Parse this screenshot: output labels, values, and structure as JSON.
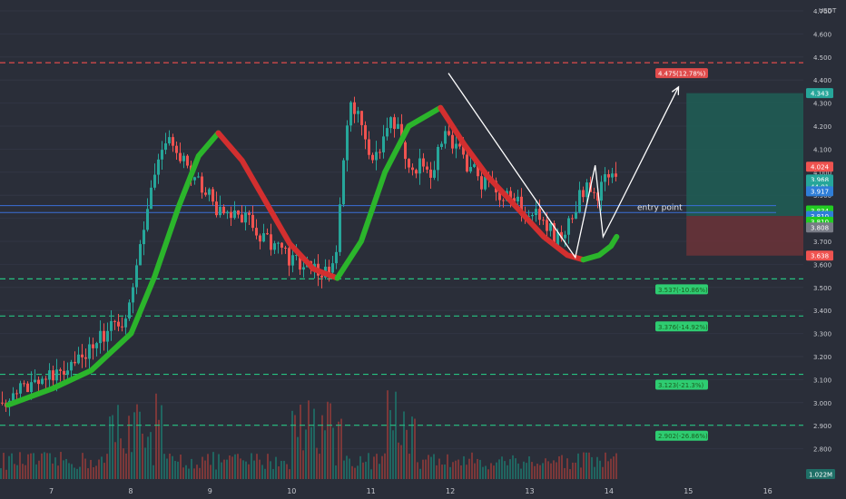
{
  "currency": "USDT",
  "annotation": "entry point",
  "colors": {
    "bg": "#2a2e39",
    "up": "#26a69a",
    "down": "#ef5350",
    "green_line": "#2bb52b",
    "red_line": "#d32f2f",
    "dashed_green": "#26c281",
    "dashed_red": "#e04b4b",
    "tp_box": "#1e5e56",
    "sl_box": "#6b3238",
    "hline_blue": "#3a6fd8"
  },
  "chart_data": {
    "type": "candlestick",
    "ylim": [
      2.72,
      4.74
    ],
    "xlim": [
      6.45,
      16.7
    ],
    "y_ticks": [
      "4.700",
      "4.600",
      "4.500",
      "4.400",
      "4.300",
      "4.200",
      "4.100",
      "4.000",
      "3.900",
      "3.800",
      "3.700",
      "3.600",
      "3.500",
      "3.400",
      "3.300",
      "3.200",
      "3.100",
      "3.000",
      "2.900",
      "2.800"
    ],
    "x_ticks": [
      "7",
      "8",
      "9",
      "10",
      "11",
      "12",
      "13",
      "14",
      "15",
      "16"
    ],
    "levels": [
      {
        "price": 4.475,
        "label": "4.475(12.78%)",
        "kind": "resistance"
      },
      {
        "price": 3.537,
        "label": "3.537(-10.86%)",
        "kind": "support"
      },
      {
        "price": 3.376,
        "label": "3.376(-14.92%)",
        "kind": "support"
      },
      {
        "price": 3.123,
        "label": "3.123(-21.3%)",
        "kind": "support"
      },
      {
        "price": 2.902,
        "label": "2.902(-26.86%)",
        "kind": "support"
      }
    ],
    "price_tags": [
      {
        "value": "4.343",
        "price": 4.343,
        "color": "#26a69a"
      },
      {
        "value": "4.024",
        "price": 4.024,
        "color": "#ef5350"
      },
      {
        "value": "3.968",
        "price": 3.968,
        "color": "#26a69a"
      },
      {
        "value": "44:01",
        "price": 3.938,
        "color": "#26a69a"
      },
      {
        "value": "3.917",
        "price": 3.917,
        "color": "#2f7ed8"
      },
      {
        "value": "3.834",
        "price": 3.834,
        "color": "#22cc22"
      },
      {
        "value": "3.810",
        "price": 3.81,
        "color": "#2f7ed8"
      },
      {
        "value": "3.810",
        "price": 3.785,
        "color": "#22cc22"
      },
      {
        "value": "3.808",
        "price": 3.76,
        "color": "#787b86"
      },
      {
        "value": "3.638",
        "price": 3.638,
        "color": "#ef5350"
      }
    ],
    "volume_label": "1.022M",
    "position": {
      "x_start": 15.0,
      "x_end": 16.5,
      "entry": 3.81,
      "target": 4.343,
      "stop": 3.638
    },
    "close_path": [
      [
        6.45,
        3.0
      ],
      [
        6.6,
        3.02
      ],
      [
        6.8,
        3.06
      ],
      [
        7.0,
        3.09
      ],
      [
        7.2,
        3.12
      ],
      [
        7.4,
        3.18
      ],
      [
        7.6,
        3.24
      ],
      [
        7.8,
        3.3
      ],
      [
        8.0,
        3.35
      ],
      [
        8.1,
        3.4
      ],
      [
        8.2,
        3.55
      ],
      [
        8.3,
        3.75
      ],
      [
        8.4,
        3.95
      ],
      [
        8.5,
        4.08
      ],
      [
        8.6,
        4.16
      ],
      [
        8.7,
        4.12
      ],
      [
        8.8,
        4.05
      ],
      [
        8.9,
        4.0
      ],
      [
        9.0,
        3.95
      ],
      [
        9.1,
        3.9
      ],
      [
        9.2,
        3.85
      ],
      [
        9.3,
        3.8
      ],
      [
        9.4,
        3.82
      ],
      [
        9.6,
        3.8
      ],
      [
        9.8,
        3.72
      ],
      [
        10.0,
        3.66
      ],
      [
        10.2,
        3.62
      ],
      [
        10.4,
        3.58
      ],
      [
        10.6,
        3.56
      ],
      [
        10.7,
        3.62
      ],
      [
        10.8,
        3.95
      ],
      [
        10.85,
        4.2
      ],
      [
        10.9,
        4.3
      ],
      [
        11.0,
        4.25
      ],
      [
        11.1,
        4.1
      ],
      [
        11.2,
        4.05
      ],
      [
        11.3,
        4.15
      ],
      [
        11.4,
        4.25
      ],
      [
        11.5,
        4.2
      ],
      [
        11.6,
        4.05
      ],
      [
        11.7,
        4.0
      ],
      [
        11.8,
        4.05
      ],
      [
        11.9,
        3.98
      ],
      [
        12.0,
        4.1
      ],
      [
        12.1,
        4.2
      ],
      [
        12.2,
        4.12
      ],
      [
        12.3,
        4.08
      ],
      [
        12.4,
        4.02
      ],
      [
        12.5,
        3.98
      ],
      [
        12.6,
        3.95
      ],
      [
        12.7,
        3.92
      ],
      [
        12.8,
        3.88
      ],
      [
        12.9,
        3.9
      ],
      [
        13.0,
        3.86
      ],
      [
        13.1,
        3.84
      ],
      [
        13.2,
        3.82
      ],
      [
        13.3,
        3.8
      ],
      [
        13.4,
        3.76
      ],
      [
        13.5,
        3.7
      ],
      [
        13.6,
        3.72
      ],
      [
        13.7,
        3.82
      ],
      [
        13.8,
        3.9
      ],
      [
        13.9,
        3.98
      ],
      [
        14.0,
        3.86
      ],
      [
        14.1,
        3.96
      ]
    ],
    "green_curve_1": [
      [
        6.45,
        2.99
      ],
      [
        7.0,
        3.06
      ],
      [
        7.5,
        3.14
      ],
      [
        8.0,
        3.3
      ],
      [
        8.3,
        3.55
      ],
      [
        8.6,
        3.85
      ],
      [
        8.85,
        4.07
      ],
      [
        9.1,
        4.17
      ]
    ],
    "red_curve_1": [
      [
        9.1,
        4.17
      ],
      [
        9.4,
        4.05
      ],
      [
        9.7,
        3.87
      ],
      [
        10.0,
        3.69
      ],
      [
        10.3,
        3.58
      ],
      [
        10.6,
        3.54
      ]
    ],
    "green_curve_2": [
      [
        10.6,
        3.54
      ],
      [
        10.9,
        3.7
      ],
      [
        11.2,
        4.0
      ],
      [
        11.5,
        4.2
      ],
      [
        11.9,
        4.28
      ]
    ],
    "red_curve_2": [
      [
        11.9,
        4.28
      ],
      [
        12.2,
        4.12
      ],
      [
        12.5,
        3.98
      ],
      [
        12.8,
        3.87
      ],
      [
        13.2,
        3.72
      ],
      [
        13.5,
        3.64
      ],
      [
        13.7,
        3.62
      ]
    ],
    "green_curve_3": [
      [
        13.7,
        3.62
      ],
      [
        13.9,
        3.64
      ],
      [
        14.05,
        3.68
      ],
      [
        14.12,
        3.72
      ]
    ],
    "white_path": [
      [
        12.0,
        4.43
      ],
      [
        13.6,
        3.63
      ],
      [
        13.85,
        4.03
      ],
      [
        13.95,
        3.72
      ],
      [
        14.1,
        3.82
      ],
      [
        14.9,
        4.37
      ]
    ],
    "hlines_blue": [
      3.855,
      3.825
    ]
  }
}
